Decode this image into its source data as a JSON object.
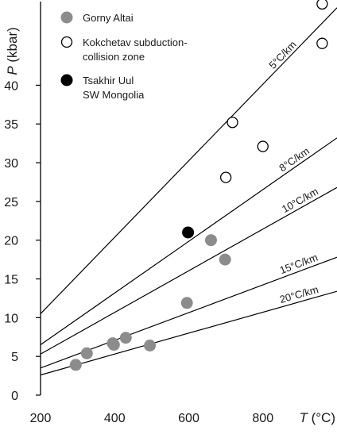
{
  "chart_data": {
    "type": "scatter",
    "xlabel": "T (°C)",
    "xlabel_var": "T",
    "xlabel_unit": " (°C)",
    "ylabel": "P (kbar)",
    "ylabel_var": "P",
    "ylabel_unit": " (kbar)",
    "xlim": [
      200,
      1000
    ],
    "ylim": [
      0,
      51
    ],
    "x_ticks": [
      200,
      400,
      600,
      800
    ],
    "y_ticks": [
      0,
      5,
      10,
      15,
      20,
      25,
      30,
      35,
      40
    ],
    "grid": false,
    "legend_position": "top-left",
    "series": [
      {
        "name": "Gorny Altai",
        "marker": "filled-circle",
        "color": "#8c8c8c",
        "points": [
          [
            295,
            3.9
          ],
          [
            325,
            5.4
          ],
          [
            395,
            6.7
          ],
          [
            398,
            6.5
          ],
          [
            430,
            7.4
          ],
          [
            495,
            6.4
          ],
          [
            595,
            11.9
          ],
          [
            660,
            20.0
          ],
          [
            698,
            17.5
          ]
        ]
      },
      {
        "name": "Kokchetav subduction-collision zone",
        "legend_lines": [
          "Kokchetav subduction-",
          "collision zone"
        ],
        "marker": "open-circle",
        "color": "#ffffff",
        "points": [
          [
            700,
            28.1
          ],
          [
            718,
            35.2
          ],
          [
            800,
            32.1
          ],
          [
            960,
            50.5
          ],
          [
            960,
            45.4
          ]
        ]
      },
      {
        "name": "Tsakhir Uul SW Mongolia",
        "legend_lines": [
          "Tsakhir Uul",
          "SW Mongolia"
        ],
        "marker": "filled-circle",
        "color": "#000000",
        "points": [
          [
            598,
            21.0
          ]
        ]
      }
    ],
    "geotherms": [
      {
        "label": "5°C/km",
        "p_at_200": 10.5,
        "p_at_1000": 50.0
      },
      {
        "label": "8°C/km",
        "p_at_200": 6.5,
        "p_at_1000": 33.2
      },
      {
        "label": "10°C/km",
        "p_at_200": 5.3,
        "p_at_1000": 26.8
      },
      {
        "label": "15°C/km",
        "p_at_200": 3.5,
        "p_at_1000": 17.8
      },
      {
        "label": "20°C/km",
        "p_at_200": 2.6,
        "p_at_1000": 13.4
      }
    ],
    "colors": {
      "axis": "#000000",
      "text": "#1a1a1a"
    }
  }
}
